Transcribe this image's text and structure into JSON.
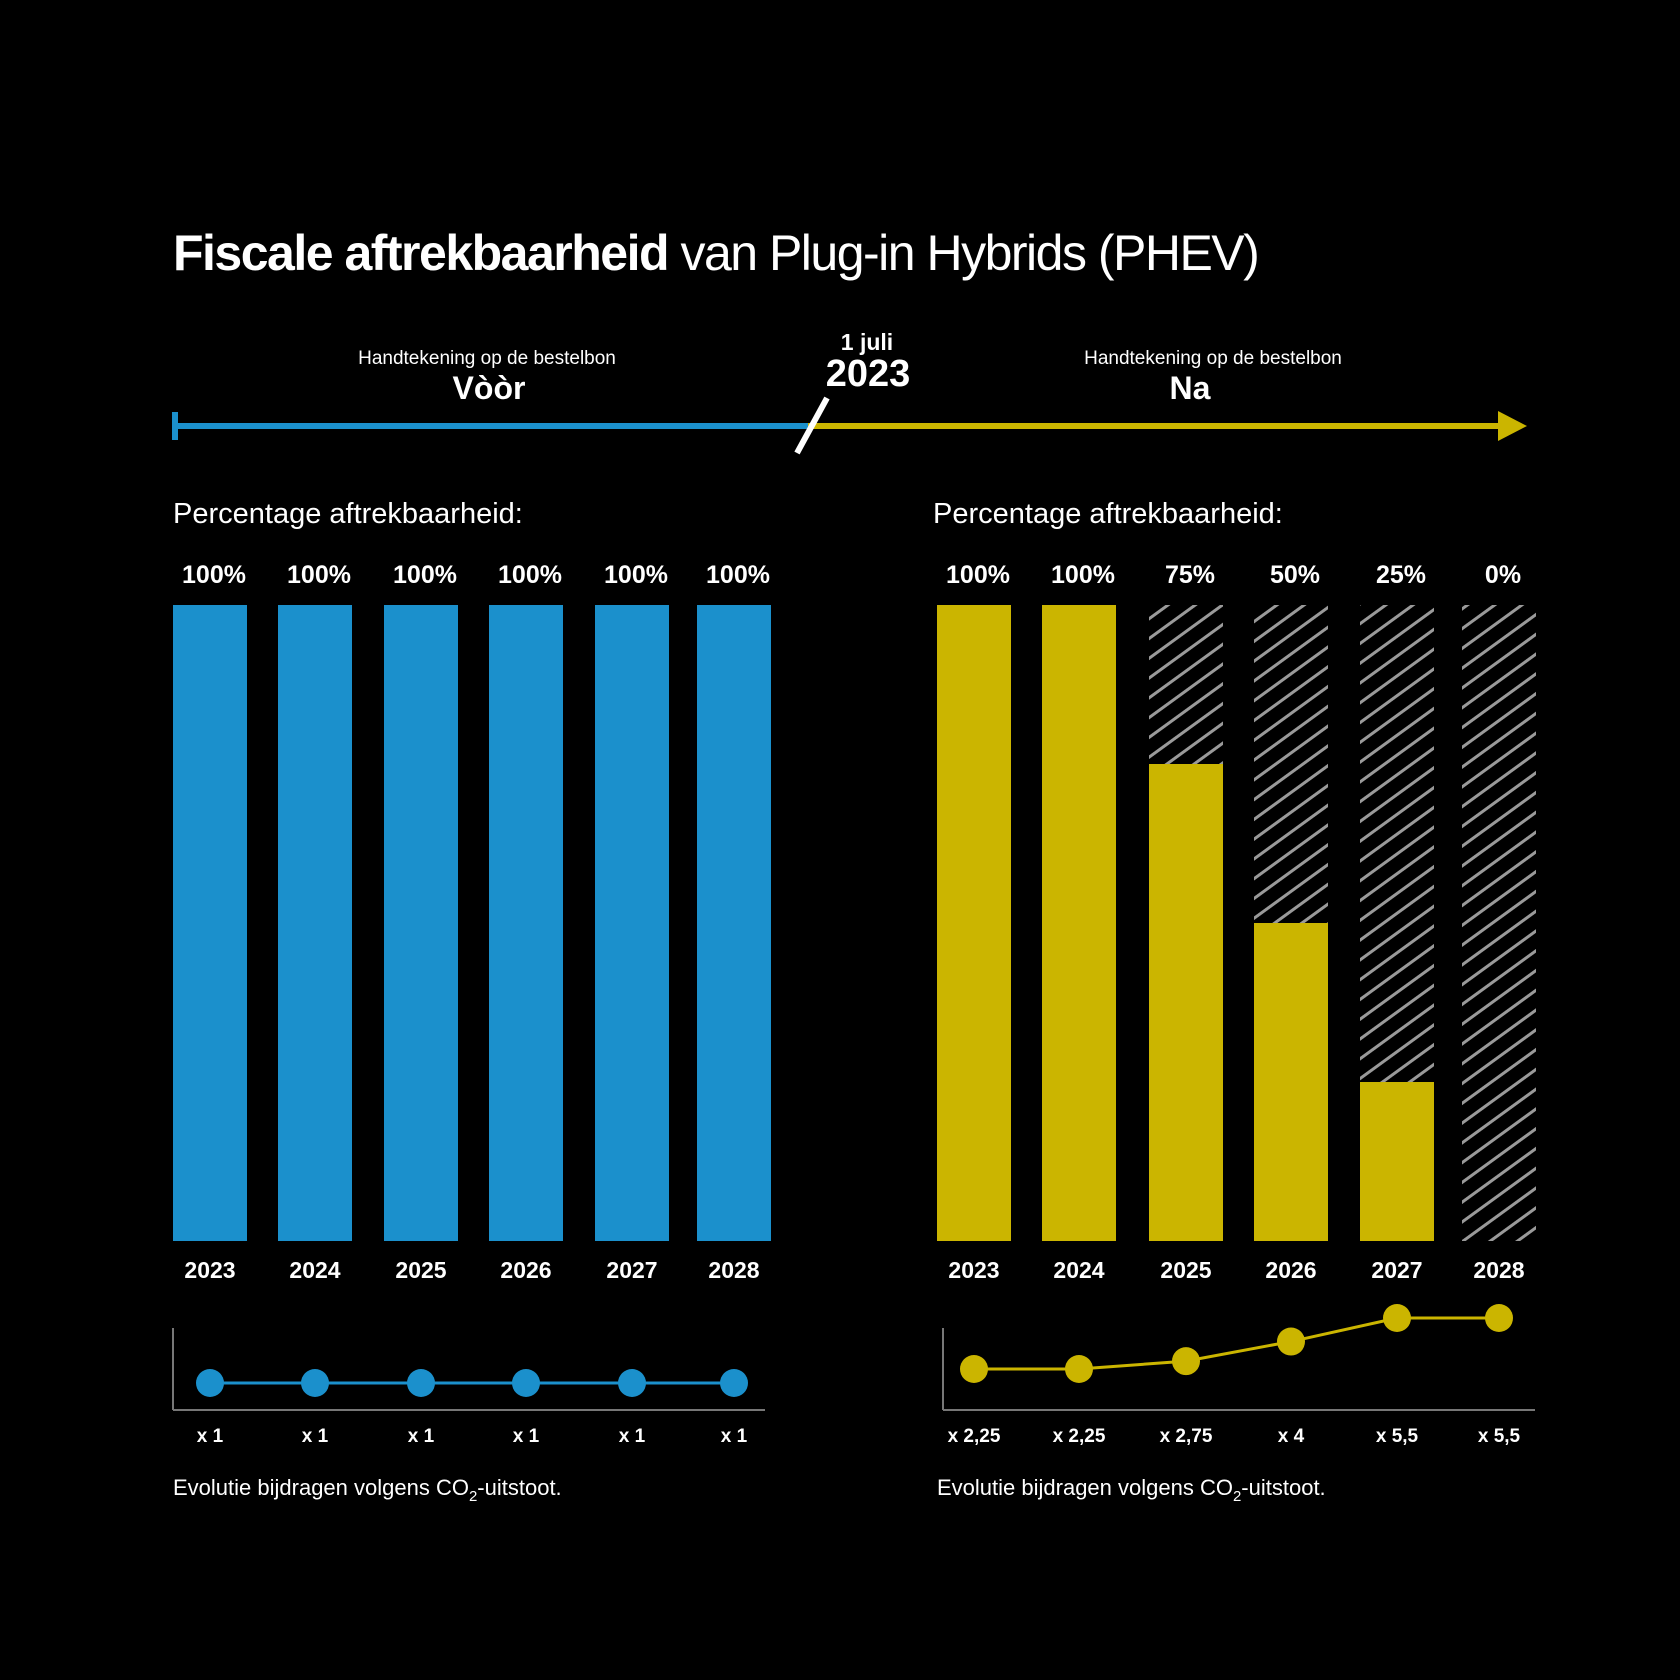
{
  "title": {
    "bold": "Fiscale aftrekbaarheid",
    "rest": "van Plug-in Hybrids (PHEV)"
  },
  "timeline": {
    "left_caption": "Handtekening op de bestelbon",
    "left_label": "Vòòr",
    "right_caption": "Handtekening op de bestelbon",
    "right_label": "Na",
    "date_day": "1 juli",
    "date_year": "2023"
  },
  "colors": {
    "background": "#000000",
    "before": "#1b90cc",
    "after": "#cbb500",
    "hatch": "#9a9a9a",
    "text": "#ffffff"
  },
  "chart_data": [
    {
      "type": "bar",
      "panel": "before",
      "title": "Percentage aftrekbaarheid:",
      "categories": [
        "2023",
        "2024",
        "2025",
        "2026",
        "2027",
        "2028"
      ],
      "values": [
        100,
        100,
        100,
        100,
        100,
        100
      ],
      "value_labels": [
        "100%",
        "100%",
        "100%",
        "100%",
        "100%",
        "100%"
      ],
      "ylim": [
        0,
        100
      ],
      "color": "#1b90cc"
    },
    {
      "type": "line",
      "panel": "before",
      "caption_pre": "Evolutie bijdragen volgens CO",
      "caption_sub": "2",
      "caption_post": "-uitstoot.",
      "categories": [
        "2023",
        "2024",
        "2025",
        "2026",
        "2027",
        "2028"
      ],
      "values": [
        1,
        1,
        1,
        1,
        1,
        1
      ],
      "value_labels": [
        "x 1",
        "x 1",
        "x 1",
        "x 1",
        "x 1",
        "x 1"
      ],
      "color": "#1b90cc"
    },
    {
      "type": "bar",
      "panel": "after",
      "title": "Percentage aftrekbaarheid:",
      "categories": [
        "2023",
        "2024",
        "2025",
        "2026",
        "2027",
        "2028"
      ],
      "values": [
        100,
        100,
        75,
        50,
        25,
        0
      ],
      "value_labels": [
        "100%",
        "100%",
        "75%",
        "50%",
        "25%",
        "0%"
      ],
      "ylim": [
        0,
        100
      ],
      "color": "#cbb500",
      "remainder_fill": "hatched"
    },
    {
      "type": "line",
      "panel": "after",
      "caption_pre": "Evolutie bijdragen volgens CO",
      "caption_sub": "2",
      "caption_post": "-uitstoot.",
      "categories": [
        "2023",
        "2024",
        "2025",
        "2026",
        "2027",
        "2028"
      ],
      "values": [
        2.25,
        2.25,
        2.75,
        4,
        5.5,
        5.5
      ],
      "value_labels": [
        "x 2,25",
        "x  2,25",
        "x 2,75",
        "x 4",
        "x 5,5",
        "x 5,5"
      ],
      "color": "#cbb500"
    }
  ]
}
